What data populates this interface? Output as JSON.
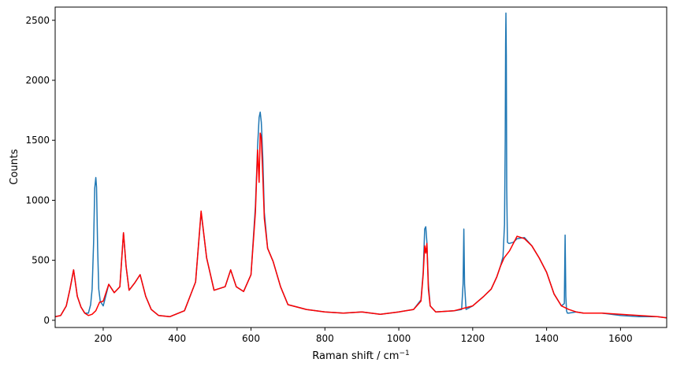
{
  "chart_data": {
    "type": "line",
    "xlabel": "Raman shift / cm",
    "xlabel_superscript": "−1",
    "ylabel": "Counts",
    "xlim": [
      70,
      1725
    ],
    "ylim": [
      -60,
      2610
    ],
    "xticks": [
      200,
      400,
      600,
      800,
      1000,
      1200,
      1400,
      1600
    ],
    "yticks": [
      0,
      500,
      1000,
      1500,
      2000,
      2500
    ],
    "grid": false,
    "series": [
      {
        "color": "#1f77b4",
        "x": [
          70,
          85,
          100,
          110,
          120,
          130,
          140,
          150,
          160,
          166,
          170,
          174,
          177,
          180,
          182,
          185,
          188,
          192,
          200,
          215,
          230,
          245,
          255,
          262,
          270,
          285,
          300,
          315,
          330,
          350,
          380,
          420,
          450,
          465,
          480,
          500,
          530,
          545,
          560,
          580,
          600,
          612,
          618,
          622,
          625,
          628,
          632,
          636,
          645,
          660,
          680,
          700,
          750,
          800,
          850,
          900,
          950,
          1000,
          1040,
          1060,
          1066,
          1070,
          1073,
          1076,
          1080,
          1085,
          1100,
          1150,
          1170,
          1174,
          1176,
          1178,
          1182,
          1200,
          1230,
          1250,
          1265,
          1275,
          1282,
          1286,
          1288,
          1289,
          1290,
          1291,
          1292,
          1294,
          1298,
          1310,
          1320,
          1340,
          1360,
          1380,
          1400,
          1420,
          1440,
          1448,
          1450,
          1452,
          1454,
          1456,
          1460,
          1480,
          1500,
          1550,
          1600,
          1650,
          1700,
          1725
        ],
        "y": [
          30,
          40,
          120,
          260,
          420,
          200,
          110,
          60,
          60,
          130,
          260,
          650,
          1100,
          1190,
          1110,
          600,
          260,
          160,
          120,
          300,
          230,
          280,
          730,
          450,
          250,
          310,
          380,
          200,
          90,
          40,
          30,
          80,
          320,
          900,
          520,
          250,
          280,
          420,
          280,
          240,
          380,
          950,
          1450,
          1690,
          1735,
          1650,
          1350,
          900,
          600,
          490,
          280,
          130,
          90,
          70,
          60,
          70,
          50,
          70,
          90,
          170,
          400,
          760,
          780,
          650,
          300,
          120,
          70,
          80,
          90,
          300,
          760,
          300,
          90,
          120,
          200,
          260,
          360,
          450,
          530,
          800,
          1500,
          2300,
          2560,
          2200,
          1100,
          650,
          640,
          650,
          680,
          690,
          620,
          520,
          400,
          220,
          120,
          140,
          710,
          200,
          80,
          60,
          60,
          70,
          60,
          60,
          40,
          30,
          30,
          20
        ]
      },
      {
        "color": "#ff0000",
        "x": [
          70,
          85,
          100,
          110,
          120,
          130,
          140,
          150,
          160,
          170,
          180,
          190,
          200,
          215,
          230,
          245,
          255,
          262,
          270,
          285,
          300,
          315,
          330,
          350,
          380,
          420,
          450,
          465,
          480,
          500,
          530,
          545,
          560,
          580,
          600,
          612,
          618,
          622,
          625,
          628,
          632,
          636,
          645,
          660,
          680,
          700,
          750,
          800,
          850,
          900,
          950,
          1000,
          1040,
          1060,
          1066,
          1070,
          1073,
          1076,
          1080,
          1085,
          1100,
          1150,
          1200,
          1230,
          1250,
          1265,
          1275,
          1285,
          1300,
          1310,
          1320,
          1340,
          1360,
          1380,
          1400,
          1420,
          1440,
          1460,
          1480,
          1500,
          1550,
          1600,
          1650,
          1700,
          1725
        ],
        "y": [
          30,
          40,
          120,
          260,
          420,
          200,
          110,
          60,
          40,
          50,
          80,
          150,
          160,
          300,
          230,
          280,
          730,
          450,
          250,
          310,
          380,
          200,
          90,
          40,
          30,
          80,
          320,
          910,
          520,
          250,
          280,
          420,
          280,
          240,
          380,
          900,
          1420,
          1150,
          1560,
          1520,
          1200,
          850,
          600,
          490,
          280,
          130,
          90,
          70,
          60,
          70,
          50,
          70,
          90,
          160,
          380,
          620,
          560,
          640,
          260,
          120,
          70,
          80,
          120,
          200,
          260,
          360,
          450,
          520,
          580,
          640,
          700,
          680,
          620,
          520,
          400,
          220,
          120,
          90,
          70,
          60,
          60,
          50,
          40,
          30,
          20
        ]
      }
    ]
  }
}
